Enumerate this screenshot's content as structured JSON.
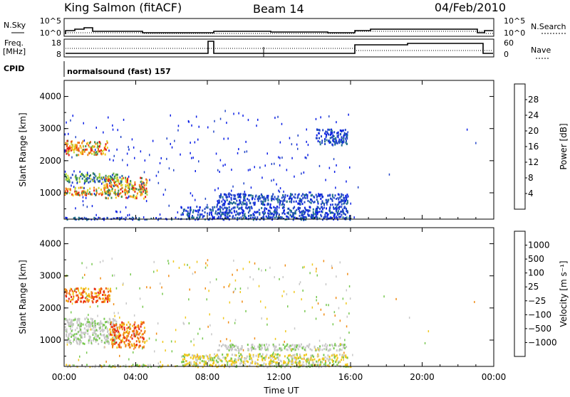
{
  "header": {
    "station": "King Salmon (fitACF)",
    "beam": "Beam 14",
    "date": "04/Feb/2010"
  },
  "summary": {
    "nsky_label": "N.Sky",
    "nsky_ticks": [
      "10^5",
      "10^0"
    ],
    "nsearch_label": "N.Search",
    "nsearch_ticks": [
      "10^5",
      "10^0"
    ],
    "freq_label": "Freq.",
    "freq_unit": "[MHz]",
    "freq_ticks": [
      "18",
      "8"
    ],
    "nave_label": "Nave",
    "nave_ticks": [
      "60",
      "0"
    ],
    "cpid_label": "CPID",
    "cpid_text": "normalsound (fast) 157"
  },
  "chart_data": [
    {
      "type": "heatmap",
      "name": "power",
      "ylabel": "Slant Range [km]",
      "xlabel": "",
      "ylim": [
        180,
        4500
      ],
      "yticks": [
        "1000",
        "2000",
        "3000",
        "4000"
      ],
      "xlim_hours": [
        0,
        24
      ],
      "colorbar": {
        "title": "Power [dB]",
        "ticks": [
          "4",
          "8",
          "12",
          "16",
          "20",
          "24",
          "28"
        ],
        "colors": [
          "#0a1ee6",
          "#2346c8",
          "#1e6e8c",
          "#3c8c50",
          "#64b43c",
          "#c8dc3c",
          "#f0c81e",
          "#f08c14",
          "#f05a14",
          "#e61e14"
        ]
      },
      "regions": [
        {
          "t0": 0.0,
          "t1": 2.4,
          "r0": 2200,
          "r1": 2650,
          "level": "high"
        },
        {
          "t0": 0.0,
          "t1": 3.2,
          "r0": 1350,
          "r1": 1650,
          "level": "mid"
        },
        {
          "t0": 2.2,
          "t1": 4.6,
          "r0": 850,
          "r1": 1500,
          "level": "high"
        },
        {
          "t0": 0.0,
          "t1": 2.5,
          "r0": 950,
          "r1": 1200,
          "level": "high"
        },
        {
          "t0": 6.5,
          "t1": 15.8,
          "r0": 250,
          "r1": 600,
          "level": "low"
        },
        {
          "t0": 8.5,
          "t1": 15.8,
          "r0": 650,
          "r1": 1000,
          "level": "low"
        },
        {
          "t0": 14.0,
          "t1": 15.8,
          "r0": 2500,
          "r1": 3000,
          "level": "low"
        }
      ]
    },
    {
      "type": "heatmap",
      "name": "velocity",
      "ylabel": "Slant Range [km]",
      "xlabel": "Time UT",
      "ylim": [
        180,
        4500
      ],
      "yticks": [
        "1000",
        "2000",
        "3000",
        "4000"
      ],
      "xticks": [
        "00:00",
        "04:00",
        "08:00",
        "12:00",
        "16:00",
        "20:00",
        "00:00"
      ],
      "xlim_hours": [
        0,
        24
      ],
      "colorbar": {
        "title": "Velocity [m s⁻¹]",
        "ticks": [
          "1000",
          "500",
          "100",
          "25",
          "−25",
          "−100",
          "−500",
          "−1000"
        ],
        "colors": [
          "#1e28dc",
          "#2d5aa0",
          "#3c8c3c",
          "#78c850",
          "#c8c8c8",
          "#c8c8c8",
          "#f0c81e",
          "#f08c14",
          "#f05a14",
          "#e61e14"
        ]
      },
      "regions": [
        {
          "t0": 0.0,
          "t1": 2.6,
          "r0": 2200,
          "r1": 2650,
          "level": "orange"
        },
        {
          "t0": 0.0,
          "t1": 3.0,
          "r0": 900,
          "r1": 1700,
          "level": "grey"
        },
        {
          "t0": 2.5,
          "t1": 4.5,
          "r0": 800,
          "r1": 1600,
          "level": "orange"
        },
        {
          "t0": 6.5,
          "t1": 15.8,
          "r0": 250,
          "r1": 600,
          "level": "yellow"
        },
        {
          "t0": 8.5,
          "t1": 15.8,
          "r0": 700,
          "r1": 900,
          "level": "grey"
        }
      ]
    }
  ]
}
